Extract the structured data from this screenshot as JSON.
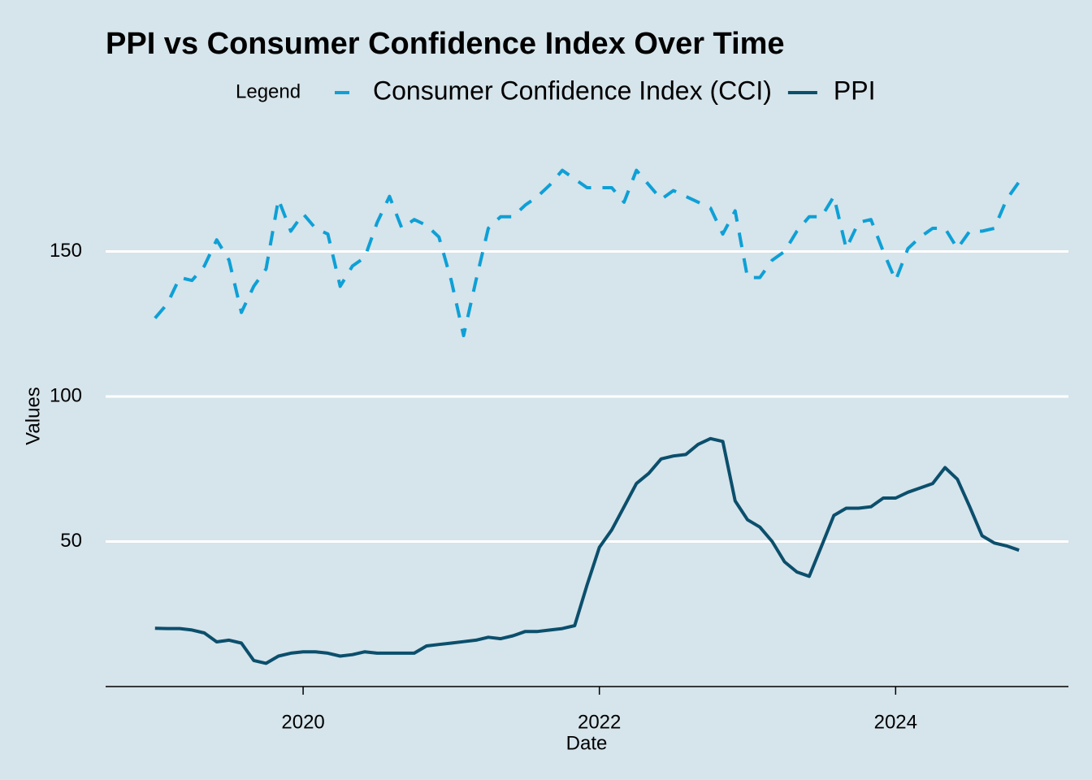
{
  "chart_data": {
    "type": "line",
    "title": "PPI vs Consumer Confidence Index Over Time",
    "legend_title": "Legend",
    "legend": "top",
    "xlabel": "Date",
    "ylabel": "Values",
    "x": [
      "2019-01",
      "2019-02",
      "2019-03",
      "2019-04",
      "2019-05",
      "2019-06",
      "2019-07",
      "2019-08",
      "2019-09",
      "2019-10",
      "2019-11",
      "2019-12",
      "2020-01",
      "2020-02",
      "2020-03",
      "2020-04",
      "2020-05",
      "2020-06",
      "2020-07",
      "2020-08",
      "2020-09",
      "2020-10",
      "2020-11",
      "2020-12",
      "2021-01",
      "2021-02",
      "2021-03",
      "2021-04",
      "2021-05",
      "2021-06",
      "2021-07",
      "2021-08",
      "2021-09",
      "2021-10",
      "2021-11",
      "2021-12",
      "2022-01",
      "2022-02",
      "2022-03",
      "2022-04",
      "2022-05",
      "2022-06",
      "2022-07",
      "2022-08",
      "2022-09",
      "2022-10",
      "2022-11",
      "2022-12",
      "2023-01",
      "2023-02",
      "2023-03",
      "2023-04",
      "2023-05",
      "2023-06",
      "2023-07",
      "2023-08",
      "2023-09",
      "2023-10",
      "2023-11",
      "2023-12",
      "2024-01",
      "2024-02",
      "2024-03",
      "2024-04",
      "2024-05",
      "2024-06",
      "2024-07",
      "2024-08",
      "2024-09",
      "2024-10",
      "2024-11"
    ],
    "series": [
      {
        "name": "Consumer Confidence Index (CCI)",
        "color": "#0ea0d6",
        "dash": true,
        "values": [
          127,
          132,
          141,
          140,
          145,
          154,
          147,
          129,
          138,
          144,
          168,
          157,
          163,
          158,
          156,
          138,
          145,
          148,
          160,
          169,
          158,
          161,
          159,
          155,
          140,
          121,
          140,
          158,
          162,
          162,
          166,
          169,
          173,
          178,
          175,
          172,
          172,
          172,
          167,
          178,
          173,
          168,
          171,
          169,
          167,
          165,
          156,
          164,
          141,
          141,
          147,
          150,
          157,
          162,
          162,
          169,
          151,
          160,
          161,
          150,
          140,
          151,
          155,
          158,
          158,
          151,
          157,
          157,
          158,
          168,
          174
        ]
      },
      {
        "name": "PPI",
        "color": "#0b4f6c",
        "dash": false,
        "values": [
          20.1,
          20,
          20,
          19.5,
          18.5,
          15.4,
          16,
          15,
          9,
          8,
          10.5,
          11.5,
          12,
          12,
          11.5,
          10.5,
          11,
          12,
          11.5,
          11.5,
          11.5,
          11.5,
          14,
          14.5,
          15,
          15.5,
          16,
          17,
          16.5,
          17.5,
          19,
          19,
          19.5,
          20,
          21,
          35,
          48,
          54,
          62,
          70,
          73.5,
          78.5,
          79.5,
          80,
          83.5,
          85.5,
          84.5,
          64,
          57.5,
          55,
          50,
          43,
          39.5,
          38,
          48.5,
          59,
          61.5,
          61.5,
          62,
          65,
          65,
          67,
          68.5,
          70,
          75.5,
          71.5,
          62,
          52,
          49.5,
          48.5,
          47
        ]
      }
    ],
    "xlim": [
      "2018-09",
      "2025-03"
    ],
    "xticks": [
      {
        "value": "2020-01",
        "label": "2020"
      },
      {
        "value": "2022-01",
        "label": "2022"
      },
      {
        "value": "2024-01",
        "label": "2024"
      }
    ],
    "ylim": [
      0,
      186
    ],
    "yticks": [
      50,
      100,
      150
    ],
    "grid": true
  }
}
